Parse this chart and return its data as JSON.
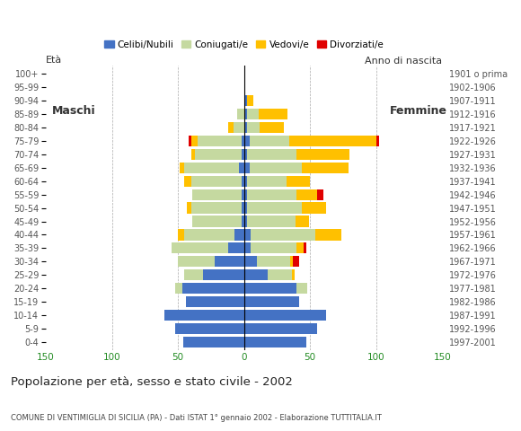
{
  "age_groups": [
    "0-4",
    "5-9",
    "10-14",
    "15-19",
    "20-24",
    "25-29",
    "30-34",
    "35-39",
    "40-44",
    "45-49",
    "50-54",
    "55-59",
    "60-64",
    "65-69",
    "70-74",
    "75-79",
    "80-84",
    "85-89",
    "90-94",
    "95-99",
    "100+"
  ],
  "birth_years": [
    "1997-2001",
    "1992-1996",
    "1987-1991",
    "1982-1986",
    "1977-1981",
    "1972-1976",
    "1967-1971",
    "1962-1966",
    "1957-1961",
    "1952-1956",
    "1947-1951",
    "1942-1946",
    "1937-1941",
    "1932-1936",
    "1927-1931",
    "1922-1926",
    "1917-1921",
    "1912-1916",
    "1907-1911",
    "1902-1906",
    "1901 o prima"
  ],
  "male": {
    "celibi": [
      46,
      52,
      60,
      44,
      47,
      31,
      22,
      12,
      7,
      2,
      2,
      2,
      2,
      4,
      2,
      2,
      0,
      0,
      0,
      0,
      0
    ],
    "coniugati": [
      0,
      0,
      0,
      0,
      5,
      14,
      28,
      43,
      38,
      37,
      38,
      37,
      38,
      41,
      35,
      33,
      8,
      5,
      0,
      0,
      0
    ],
    "vedovi": [
      0,
      0,
      0,
      0,
      0,
      0,
      0,
      0,
      5,
      0,
      3,
      0,
      5,
      4,
      3,
      5,
      4,
      0,
      0,
      0,
      0
    ],
    "divorziati": [
      0,
      0,
      0,
      0,
      0,
      0,
      0,
      0,
      0,
      0,
      0,
      0,
      0,
      0,
      0,
      2,
      0,
      0,
      0,
      0,
      0
    ]
  },
  "female": {
    "nubili": [
      47,
      55,
      62,
      42,
      40,
      18,
      10,
      5,
      5,
      2,
      2,
      2,
      2,
      4,
      2,
      4,
      2,
      2,
      2,
      0,
      0
    ],
    "coniugate": [
      0,
      0,
      0,
      0,
      8,
      18,
      25,
      35,
      49,
      37,
      42,
      38,
      30,
      40,
      38,
      30,
      10,
      9,
      0,
      0,
      0
    ],
    "vedove": [
      0,
      0,
      0,
      0,
      0,
      2,
      2,
      5,
      20,
      10,
      18,
      15,
      18,
      35,
      40,
      66,
      18,
      22,
      5,
      0,
      0
    ],
    "divorziate": [
      0,
      0,
      0,
      0,
      0,
      0,
      5,
      2,
      0,
      0,
      0,
      5,
      0,
      0,
      0,
      2,
      0,
      0,
      0,
      0,
      0
    ]
  },
  "colors": {
    "celibi": "#4472c4",
    "coniugati": "#c5d9a0",
    "vedovi": "#ffc000",
    "divorziati": "#e00000"
  },
  "title": "Popolazione per età, sesso e stato civile - 2002",
  "subtitle": "COMUNE DI VENTIMIGLIA DI SICILIA (PA) - Dati ISTAT 1° gennaio 2002 - Elaborazione TUTTITALIA.IT",
  "xlabel_male": "Maschi",
  "xlabel_female": "Femmine",
  "eta_label": "Età",
  "anno_label": "Anno di nascita",
  "xlim": 150,
  "legend_labels": [
    "Celibi/Nubili",
    "Coniugati/e",
    "Vedovi/e",
    "Divorziati/e"
  ],
  "background_color": "#ffffff"
}
